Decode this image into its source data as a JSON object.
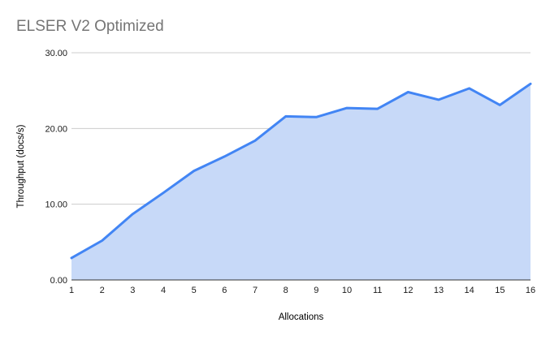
{
  "page": {
    "background": "#ffffff"
  },
  "chart_data": {
    "type": "area",
    "title": "ELSER V2 Optimized",
    "xlabel": "Allocations",
    "ylabel": "Throughput (docs/s)",
    "categories": [
      "1",
      "2",
      "3",
      "4",
      "5",
      "6",
      "7",
      "8",
      "9",
      "10",
      "11",
      "12",
      "13",
      "14",
      "15",
      "16"
    ],
    "values": [
      2.9,
      5.2,
      8.7,
      11.5,
      14.4,
      16.3,
      18.4,
      21.6,
      21.5,
      22.7,
      22.6,
      24.8,
      23.8,
      25.3,
      23.1,
      25.9
    ],
    "ylim": [
      0,
      30
    ],
    "yticks": [
      0,
      10,
      20,
      30
    ],
    "ytick_labels": [
      "0.00",
      "10.00",
      "20.00",
      "30.00"
    ],
    "grid": true,
    "legend": "none",
    "colors": {
      "line": "#4285f4",
      "fill": "#c7d9f8",
      "gridline": "#cccccc",
      "axis_line": "#333333",
      "title_text": "#757575",
      "tick_text": "#1a1a1a",
      "axis_title_text": "#000000"
    }
  }
}
